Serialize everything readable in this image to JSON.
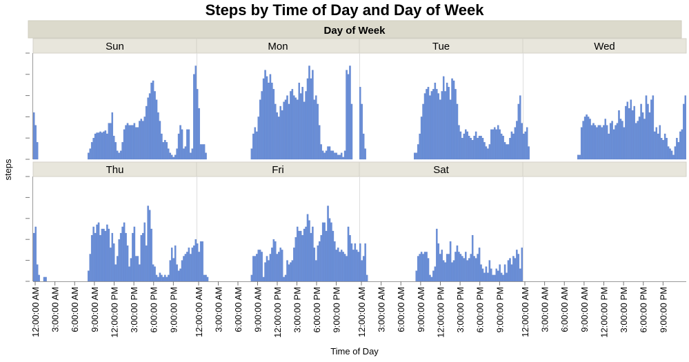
{
  "chart_data": {
    "type": "bar",
    "title": "Steps by Time of Day and Day of Week",
    "facet_header": "Day of Week",
    "ylabel": "steps",
    "xlabel": "Time of Day",
    "x_ticks": [
      "12:00:00 AM",
      "3:00:00 AM",
      "6:00:00 AM",
      "9:00:00 AM",
      "12:00:00 PM",
      "3:00:00 PM",
      "6:00:00 PM",
      "9:00:00 PM"
    ],
    "bins_per_day": 96,
    "ylim": [
      0,
      5
    ],
    "grid": false,
    "bar_color": "#6a8fd8",
    "panels": [
      {
        "name": "Sun",
        "values": [
          2.2,
          1.6,
          0.8,
          0,
          0,
          0,
          0,
          0,
          0,
          0,
          0,
          0,
          0,
          0,
          0,
          0,
          0,
          0,
          0,
          0,
          0,
          0,
          0,
          0,
          0,
          0,
          0,
          0,
          0,
          0,
          0,
          0,
          0.3,
          0.5,
          0.8,
          1.0,
          1.2,
          1.25,
          1.25,
          1.3,
          1.25,
          1.3,
          1.35,
          1.2,
          1.7,
          1.7,
          2.2,
          1.1,
          0.8,
          0.4,
          0.3,
          0.4,
          0.8,
          1.4,
          1.6,
          1.7,
          1.6,
          1.6,
          1.6,
          1.7,
          1.5,
          1.5,
          1.8,
          1.9,
          1.8,
          2.0,
          2.5,
          2.9,
          3.1,
          3.6,
          3.7,
          3.2,
          2.8,
          2.2,
          1.8,
          1.2,
          0.8,
          0.9,
          0.8,
          0.5,
          0.3,
          0.2,
          0.1,
          0.2,
          0.5,
          1.2,
          1.6,
          1.4,
          0.5,
          0.6,
          1.4,
          1.4,
          0.3,
          0.5,
          4.0,
          4.4
        ]
      },
      {
        "name": "Mon",
        "values": [
          3.3,
          2.4,
          0.7,
          0.7,
          0.7,
          0.3,
          0,
          0,
          0,
          0,
          0,
          0,
          0,
          0,
          0,
          0,
          0,
          0,
          0,
          0,
          0,
          0,
          0,
          0,
          0,
          0,
          0,
          0,
          0,
          0,
          0,
          0,
          0.5,
          1.2,
          1.5,
          1.3,
          2.0,
          2.8,
          3.2,
          3.8,
          4.2,
          3.9,
          3.6,
          4.0,
          3.6,
          3.3,
          2.6,
          2.2,
          2.0,
          2.5,
          2.3,
          2.7,
          2.8,
          3.0,
          2.6,
          3.2,
          3.3,
          3.0,
          2.9,
          2.8,
          3.6,
          3.1,
          3.4,
          2.7,
          3.2,
          3.8,
          4.4,
          3.8,
          4.2,
          2.8,
          3.0,
          2.6,
          1.6,
          0.7,
          0.4,
          0.3,
          0.4,
          0.6,
          0.6,
          0.4,
          0.4,
          0.3,
          0.3,
          0.2,
          0.2,
          0.3,
          0.1,
          0.4,
          4.2,
          4.0,
          4.4,
          2.6,
          0,
          0,
          0,
          0
        ]
      },
      {
        "name": "Tue",
        "values": [
          3.4,
          2.6,
          1.2,
          0.5,
          0,
          0,
          0,
          0,
          0,
          0,
          0,
          0,
          0,
          0,
          0,
          0,
          0,
          0,
          0,
          0,
          0,
          0,
          0,
          0,
          0,
          0,
          0,
          0,
          0,
          0,
          0,
          0,
          0.3,
          0.3,
          0.7,
          1.2,
          2.0,
          2.6,
          3.1,
          3.3,
          3.4,
          3.0,
          3.2,
          3.3,
          3.6,
          3.3,
          3.1,
          2.8,
          3.2,
          3.9,
          3.2,
          3.6,
          3.4,
          2.8,
          3.8,
          3.7,
          3.3,
          2.6,
          1.6,
          1.3,
          1.0,
          1.2,
          1.4,
          1.3,
          1.1,
          1.0,
          0.9,
          1.1,
          1.3,
          1.0,
          1.1,
          1.1,
          1.0,
          0.8,
          0.6,
          0.5,
          0.7,
          1.4,
          1.4,
          1.5,
          1.4,
          1.6,
          1.4,
          1.2,
          1.1,
          0.8,
          0.7,
          0.7,
          1.0,
          1.3,
          1.2,
          1.5,
          1.8,
          2.6,
          3.0,
          1.7
        ]
      },
      {
        "name": "Wed",
        "values": [
          1.2,
          1.3,
          1.5,
          0.6,
          0,
          0,
          0,
          0,
          0,
          0,
          0,
          0,
          0,
          0,
          0,
          0,
          0,
          0,
          0,
          0,
          0,
          0,
          0,
          0,
          0,
          0,
          0,
          0,
          0,
          0,
          0,
          0,
          0.2,
          0.2,
          1.5,
          1.8,
          2.0,
          2.1,
          2.0,
          1.9,
          1.6,
          1.7,
          1.6,
          1.5,
          1.6,
          1.6,
          1.5,
          1.6,
          1.9,
          1.6,
          1.2,
          1.7,
          1.8,
          1.4,
          1.6,
          1.7,
          2.3,
          1.9,
          1.8,
          1.5,
          2.5,
          2.7,
          2.4,
          2.8,
          2.3,
          2.5,
          1.7,
          1.8,
          2.0,
          2.6,
          2.2,
          1.9,
          3.0,
          2.6,
          2.2,
          2.8,
          3.0,
          1.3,
          1.5,
          1.2,
          1.6,
          1.0,
          0.9,
          1.2,
          1.0,
          0.6,
          0.5,
          0.4,
          0.2,
          0.6,
          1.0,
          0.8,
          1.3,
          1.4,
          2.6,
          3.0
        ]
      },
      {
        "name": "Thu",
        "values": [
          2.3,
          2.6,
          0.8,
          0.3,
          0,
          0,
          0.2,
          0.2,
          0,
          0,
          0,
          0,
          0,
          0,
          0,
          0,
          0,
          0,
          0,
          0,
          0,
          0,
          0,
          0,
          0,
          0,
          0,
          0,
          0,
          0,
          0,
          0,
          0.5,
          1.3,
          2.2,
          2.6,
          2.3,
          2.7,
          2.8,
          2.2,
          2.5,
          2.5,
          2.4,
          2.7,
          2.5,
          1.6,
          2.3,
          1.8,
          0.8,
          1.2,
          2.0,
          2.3,
          2.6,
          2.8,
          2.3,
          1.7,
          0.7,
          1.1,
          2.3,
          2.6,
          1.2,
          1.2,
          0.8,
          2.2,
          2.3,
          2.8,
          1.7,
          3.6,
          3.4,
          2.5,
          0.8,
          0.7,
          0.3,
          0.2,
          0.4,
          0.3,
          0.2,
          0.3,
          0.2,
          0.3,
          1.0,
          1.6,
          1.1,
          1.7,
          0.8,
          0.5,
          0.6,
          1.0,
          1.2,
          1.3,
          1.4,
          1.6,
          1.3,
          1.6,
          1.7,
          2.0
        ]
      },
      {
        "name": "Fri",
        "values": [
          1.8,
          1.4,
          1.9,
          1.9,
          0.3,
          0.3,
          0.2,
          0,
          0,
          0,
          0,
          0,
          0,
          0,
          0,
          0,
          0,
          0,
          0,
          0,
          0,
          0,
          0,
          0,
          0,
          0,
          0,
          0,
          0,
          0,
          0,
          0,
          0.3,
          1.2,
          1.2,
          1.3,
          1.5,
          1.5,
          1.4,
          0.2,
          0.9,
          1.2,
          1.0,
          1.3,
          1.6,
          2.0,
          1.9,
          1.3,
          1.4,
          1.6,
          1.5,
          0.2,
          0.3,
          1.0,
          0.8,
          0.9,
          1.0,
          1.6,
          2.1,
          2.6,
          2.4,
          2.4,
          2.2,
          2.5,
          2.6,
          3.2,
          2.9,
          2.3,
          2.6,
          1.6,
          1.0,
          1.7,
          1.9,
          2.2,
          2.8,
          2.8,
          2.4,
          3.6,
          3.0,
          2.8,
          2.4,
          1.9,
          1.5,
          1.6,
          1.4,
          1.5,
          1.4,
          1.3,
          1.2,
          2.6,
          2.2,
          1.8,
          1.5,
          1.8,
          1.5,
          1.4
        ]
      },
      {
        "name": "Sat",
        "values": [
          1.8,
          1.0,
          1.2,
          1.8,
          0.3,
          0,
          0,
          0,
          0,
          0,
          0,
          0,
          0,
          0,
          0,
          0,
          0,
          0,
          0,
          0,
          0,
          0,
          0,
          0,
          0,
          0,
          0,
          0,
          0,
          0,
          0,
          0,
          0,
          0.5,
          1.2,
          1.3,
          1.4,
          1.3,
          1.4,
          1.4,
          1.1,
          0.3,
          0.2,
          0.5,
          0.7,
          2.5,
          1.8,
          1.3,
          1.5,
          1.0,
          0.9,
          1.3,
          1.3,
          1.9,
          0.9,
          1.0,
          1.4,
          1.7,
          1.4,
          1.3,
          1.2,
          1.1,
          1.4,
          1.0,
          1.1,
          1.3,
          2.2,
          1.2,
          1.1,
          1.3,
          1.6,
          0.8,
          0.6,
          0.4,
          0.7,
          0.4,
          1.0,
          0.6,
          0.3,
          0.3,
          0.6,
          0.5,
          0.8,
          0.4,
          0.3,
          0.8,
          0.4,
          1.0,
          1.1,
          0.8,
          1.2,
          1.1,
          1.5,
          1.3,
          0.6,
          1.6
        ]
      },
      {
        "name": "",
        "values": []
      }
    ]
  }
}
